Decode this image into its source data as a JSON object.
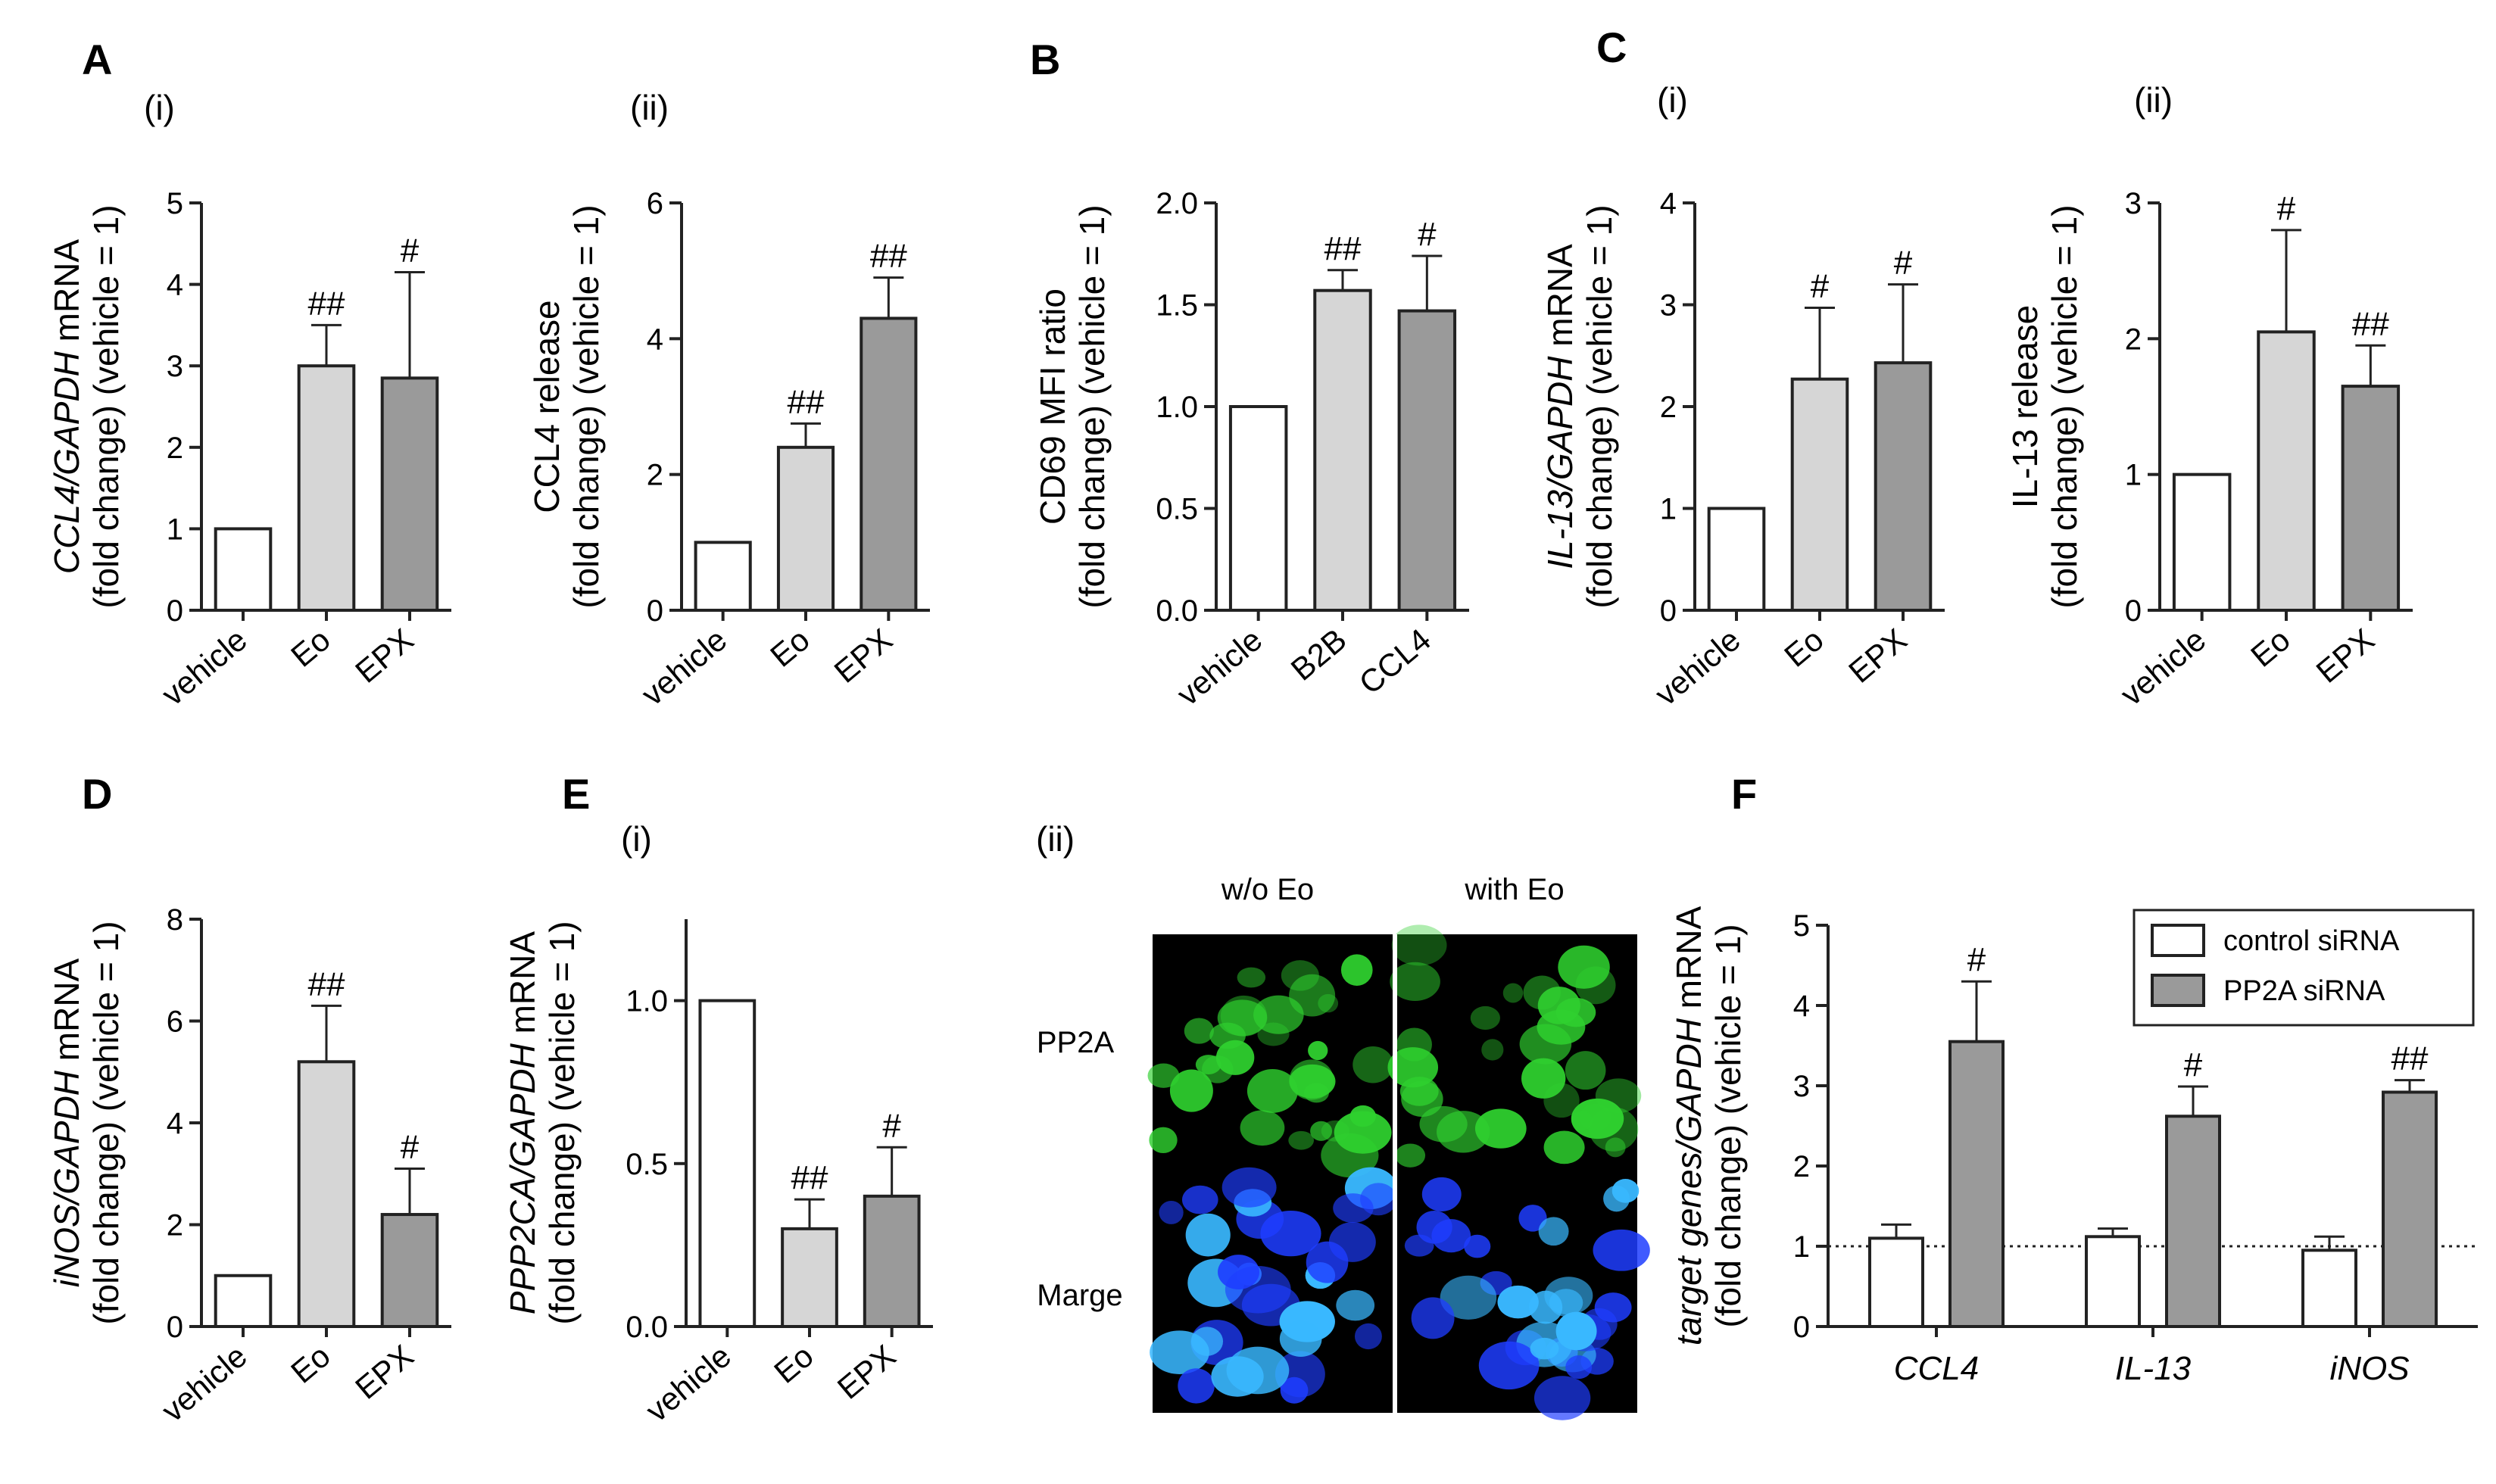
{
  "figure": {
    "background": "#ffffff",
    "colors": {
      "bar_white": "#ffffff",
      "bar_light": "#d6d6d6",
      "bar_dark": "#9a9a9a",
      "axis": "#222222"
    },
    "panel_labels": [
      "A",
      "B",
      "C",
      "D",
      "E",
      "F"
    ],
    "sub_labels": [
      "(i)",
      "(ii)",
      "(i)",
      "(ii)",
      "(i)",
      "(ii)"
    ]
  },
  "chart_data": [
    {
      "id": "A-i",
      "type": "bar",
      "panel": "A",
      "sub": "(i)",
      "ylabel_line1": [
        {
          "t": "CCL4/GAPDH",
          "i": true
        },
        {
          "t": " mRNA",
          "i": false
        }
      ],
      "ylabel_line2": "(fold change) (vehicle = 1)",
      "categories": [
        "vehicle",
        "Eo",
        "EPX"
      ],
      "values": [
        1,
        3.0,
        2.85
      ],
      "errors": [
        0,
        0.5,
        1.3
      ],
      "sig": [
        "",
        "##",
        "#"
      ],
      "ylim": [
        0,
        5
      ],
      "yticks": [
        0,
        1,
        2,
        3,
        4,
        5
      ],
      "ytick_labels": [
        "0",
        "1",
        "2",
        "3",
        "4",
        "5"
      ],
      "fills": [
        "#ffffff",
        "#d6d6d6",
        "#9a9a9a"
      ]
    },
    {
      "id": "A-ii",
      "type": "bar",
      "sub": "(ii)",
      "ylabel_line1": [
        {
          "t": "CCL4 release",
          "i": false
        }
      ],
      "ylabel_line2": "(fold change) (vehicle = 1)",
      "categories": [
        "vehicle",
        "Eo",
        "EPX"
      ],
      "values": [
        1,
        2.4,
        4.3
      ],
      "errors": [
        0,
        0.35,
        0.6
      ],
      "sig": [
        "",
        "##",
        "##"
      ],
      "ylim": [
        0,
        6
      ],
      "yticks": [
        0,
        2,
        4,
        6
      ],
      "ytick_labels": [
        "0",
        "2",
        "4",
        "6"
      ],
      "fills": [
        "#ffffff",
        "#d6d6d6",
        "#9a9a9a"
      ]
    },
    {
      "id": "B",
      "type": "bar",
      "panel": "B",
      "ylabel_line1": [
        {
          "t": "CD69 MFI ratio",
          "i": false
        }
      ],
      "ylabel_line2": "(fold change) (vehicle = 1)",
      "categories": [
        "vehicle",
        "B2B",
        "CCL4"
      ],
      "values": [
        1.0,
        1.57,
        1.47
      ],
      "errors": [
        0,
        0.1,
        0.27
      ],
      "sig": [
        "",
        "##",
        "#"
      ],
      "ylim": [
        0,
        2.0
      ],
      "yticks": [
        0,
        0.5,
        1.0,
        1.5,
        2.0
      ],
      "ytick_labels": [
        "0.0",
        "0.5",
        "1.0",
        "1.5",
        "2.0"
      ],
      "fills": [
        "#ffffff",
        "#d6d6d6",
        "#9a9a9a"
      ]
    },
    {
      "id": "C-i",
      "type": "bar",
      "panel": "C",
      "sub": "(i)",
      "ylabel_line1": [
        {
          "t": "IL-13/GAPDH",
          "i": true
        },
        {
          "t": " mRNA",
          "i": false
        }
      ],
      "ylabel_line2": "(fold change) (vehicle = 1)",
      "categories": [
        "vehicle",
        "Eo",
        "EPX"
      ],
      "values": [
        1,
        2.27,
        2.43
      ],
      "errors": [
        0,
        0.7,
        0.77
      ],
      "sig": [
        "",
        "#",
        "#"
      ],
      "ylim": [
        0,
        4
      ],
      "yticks": [
        0,
        1,
        2,
        3,
        4
      ],
      "ytick_labels": [
        "0",
        "1",
        "2",
        "3",
        "4"
      ],
      "fills": [
        "#ffffff",
        "#d6d6d6",
        "#9a9a9a"
      ]
    },
    {
      "id": "C-ii",
      "type": "bar",
      "sub": "(ii)",
      "ylabel_line1": [
        {
          "t": "IL-13 release",
          "i": false
        }
      ],
      "ylabel_line2": "(fold change) (vehicle = 1)",
      "categories": [
        "vehicle",
        "Eo",
        "EPX"
      ],
      "values": [
        1,
        2.05,
        1.65
      ],
      "errors": [
        0,
        0.75,
        0.3
      ],
      "sig": [
        "",
        "#",
        "##"
      ],
      "ylim": [
        0,
        3
      ],
      "yticks": [
        0,
        1,
        2,
        3
      ],
      "ytick_labels": [
        "0",
        "1",
        "2",
        "3"
      ],
      "fills": [
        "#ffffff",
        "#d6d6d6",
        "#9a9a9a"
      ]
    },
    {
      "id": "D",
      "type": "bar",
      "panel": "D",
      "ylabel_line1": [
        {
          "t": "iNOS/GAPDH",
          "i": true
        },
        {
          "t": " mRNA",
          "i": false
        }
      ],
      "ylabel_line2": "(fold change) (vehicle = 1)",
      "categories": [
        "vehicle",
        "Eo",
        "EPX"
      ],
      "values": [
        1,
        5.2,
        2.2
      ],
      "errors": [
        0,
        1.1,
        0.9
      ],
      "sig": [
        "",
        "##",
        "#"
      ],
      "ylim": [
        0,
        8
      ],
      "yticks": [
        0,
        2,
        4,
        6,
        8
      ],
      "ytick_labels": [
        "0",
        "2",
        "4",
        "6",
        "8"
      ],
      "fills": [
        "#ffffff",
        "#d6d6d6",
        "#9a9a9a"
      ]
    },
    {
      "id": "E-i",
      "type": "bar",
      "panel": "E",
      "sub": "(i)",
      "ylabel_line1": [
        {
          "t": "PPP2CA/GAPDH",
          "i": true
        },
        {
          "t": " mRNA",
          "i": false
        }
      ],
      "ylabel_line2": "(fold change) (vehicle = 1)",
      "categories": [
        "vehicle",
        "Eo",
        "EPX"
      ],
      "values": [
        1.0,
        0.3,
        0.4
      ],
      "errors": [
        0,
        0.09,
        0.15
      ],
      "sig": [
        "",
        "##",
        "#"
      ],
      "ylim": [
        0,
        1.25
      ],
      "yticks": [
        0,
        0.5,
        1.0
      ],
      "ytick_labels": [
        "0.0",
        "0.5",
        "1.0"
      ],
      "fills": [
        "#ffffff",
        "#d6d6d6",
        "#9a9a9a"
      ]
    },
    {
      "id": "F",
      "type": "bar",
      "panel": "F",
      "ylabel_line1": [
        {
          "t": "target genes/GAPDH",
          "i": true
        },
        {
          "t": " mRNA",
          "i": false
        }
      ],
      "ylabel_line2": "(fold change) (vehicle = 1)",
      "categories": [
        "CCL4",
        "IL-13",
        "iNOS"
      ],
      "categories_italic": true,
      "series": [
        {
          "name": "control siRNA",
          "values": [
            1.1,
            1.12,
            0.95
          ],
          "errors": [
            0.17,
            0.1,
            0.17
          ],
          "sig": [
            "",
            "",
            ""
          ],
          "fill": "#ffffff"
        },
        {
          "name": "PP2A siRNA",
          "values": [
            3.55,
            2.62,
            2.92
          ],
          "errors": [
            0.75,
            0.37,
            0.15
          ],
          "sig": [
            "#",
            "#",
            "##"
          ],
          "fill": "#9a9a9a"
        }
      ],
      "reference_line": 1,
      "ylim": [
        0,
        5
      ],
      "yticks": [
        0,
        1,
        2,
        3,
        4,
        5
      ],
      "ytick_labels": [
        "0",
        "1",
        "2",
        "3",
        "4",
        "5"
      ],
      "legend": "top-right"
    }
  ],
  "micrograph": {
    "sub": "(ii)",
    "col_labels": [
      "w/o Eo",
      "with Eo"
    ],
    "row_labels": [
      "PP2A",
      "Marge"
    ],
    "colors": {
      "background": "#000000",
      "pp2a": "#2fd02f",
      "nuclei": "#1e3dff",
      "nuclei_bright": "#39b8ff",
      "divider": "#ffffff"
    }
  }
}
